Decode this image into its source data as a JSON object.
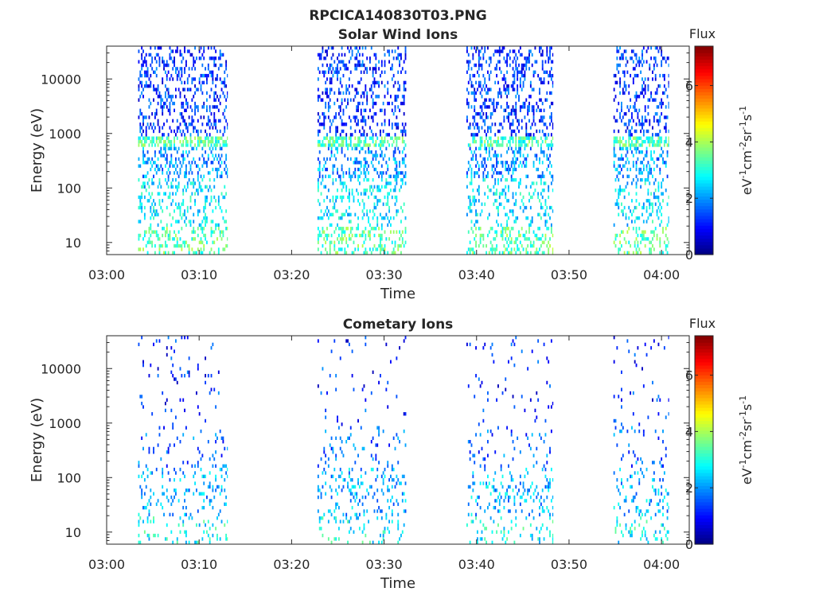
{
  "figure": {
    "title": "RPCICA140830T03.PNG"
  },
  "colorbar": {
    "title": "Flux",
    "ticks": [
      "0",
      "2",
      "4",
      "6"
    ],
    "range": [
      0,
      7.4
    ],
    "colormap": "jet",
    "unit_parts": {
      "eV": "eV",
      "exp_ev": "-1",
      "cm": "cm",
      "exp_cm": "-2",
      "sr": "sr",
      "exp_sr": "-1",
      "s": "s",
      "exp_s": "-1"
    }
  },
  "chart_data": [
    {
      "type": "heatmap",
      "title": "Solar Wind Ions",
      "xlabel": "Time",
      "ylabel": "Energy (eV)",
      "x_ticks": [
        "03:00",
        "03:10",
        "03:20",
        "03:30",
        "03:40",
        "03:50",
        "04:00"
      ],
      "x_tick_minutes": [
        0,
        10,
        20,
        30,
        40,
        50,
        60
      ],
      "xlim_minutes": [
        0,
        63
      ],
      "y_ticks": [
        "10",
        "100",
        "1000",
        "10000"
      ],
      "y_tick_values": [
        10,
        100,
        1000,
        10000
      ],
      "ylim": [
        6,
        40000
      ],
      "y_scale": "log",
      "data_windows_minutes": [
        [
          3.4,
          13.1
        ],
        [
          22.8,
          32.4
        ],
        [
          38.9,
          48.3
        ],
        [
          54.8,
          60.8
        ]
      ],
      "typical_flux": {
        "energy_5_to_20_eV": 3.4,
        "energy_20_to_150_eV": 2.6,
        "energy_600_to_900_eV": 3.3,
        "energy_above_1000_eV": 1.3
      }
    },
    {
      "type": "heatmap",
      "title": "Cometary Ions",
      "xlabel": "Time",
      "ylabel": "Energy (eV)",
      "x_ticks": [
        "03:00",
        "03:10",
        "03:20",
        "03:30",
        "03:40",
        "03:50",
        "04:00"
      ],
      "x_tick_minutes": [
        0,
        10,
        20,
        30,
        40,
        50,
        60
      ],
      "xlim_minutes": [
        0,
        63
      ],
      "y_ticks": [
        "10",
        "100",
        "1000",
        "10000"
      ],
      "y_tick_values": [
        10,
        100,
        1000,
        10000
      ],
      "ylim": [
        6,
        40000
      ],
      "y_scale": "log",
      "data_windows_minutes": [
        [
          3.4,
          13.1
        ],
        [
          22.8,
          32.4
        ],
        [
          38.9,
          48.3
        ],
        [
          54.8,
          60.8
        ]
      ],
      "typical_flux": {
        "energy_5_to_20_eV": 2.8,
        "energy_20_to_150_eV": 2.2,
        "energy_150_to_900_eV": 1.6,
        "energy_above_1000_eV": 1.2
      }
    }
  ]
}
